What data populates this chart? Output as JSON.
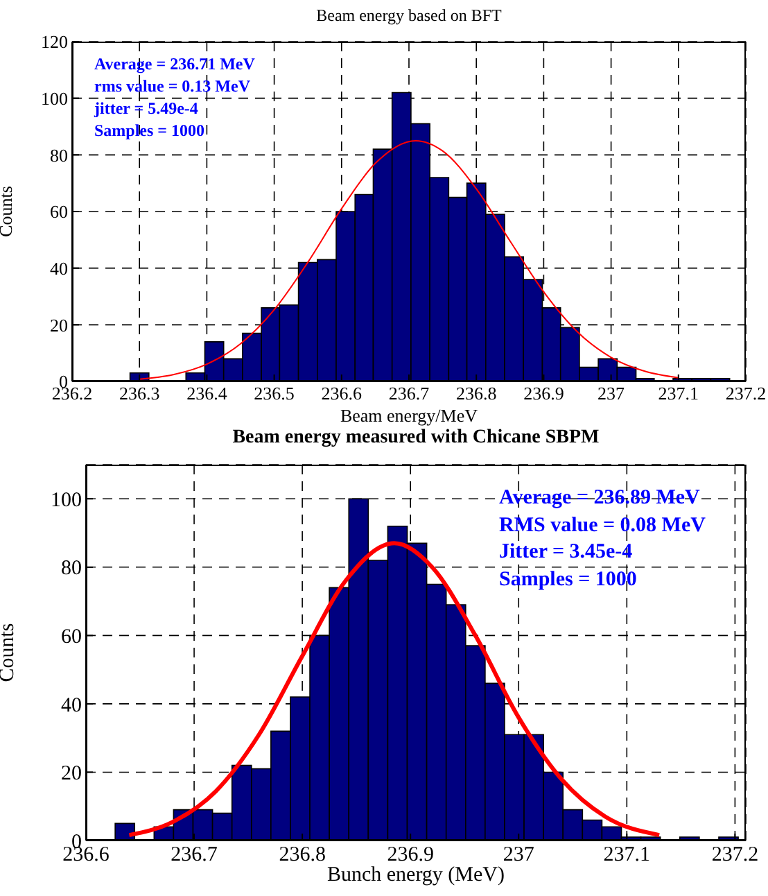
{
  "chart_data": [
    {
      "type": "histogram",
      "title": "Beam energy based on BFT",
      "xlabel": "Beam energy/MeV",
      "ylabel": "Counts",
      "bins": [
        236.286,
        236.314,
        236.369,
        236.397,
        236.425,
        236.453,
        236.481,
        236.508,
        236.536,
        236.564,
        236.592,
        236.62,
        236.647,
        236.675,
        236.703,
        236.731,
        236.759,
        236.786,
        236.814,
        236.842,
        236.87,
        236.898,
        236.925,
        236.953,
        236.981,
        237.009,
        237.037,
        237.064,
        237.092,
        237.12,
        237.148,
        237.176
      ],
      "values": [
        3,
        0,
        3,
        14,
        8,
        17,
        26,
        27,
        42,
        43,
        60,
        66,
        82,
        102,
        91,
        72,
        65,
        70,
        59,
        44,
        36,
        26,
        19,
        5,
        8,
        5,
        1,
        0,
        1,
        1,
        1
      ],
      "color": "#000080",
      "xlim": [
        236.2,
        237.2
      ],
      "xticks": [
        236.2,
        236.3,
        236.4,
        236.5,
        236.6,
        236.7,
        236.8,
        236.9,
        237,
        237.1,
        237.2
      ],
      "ylim": [
        0,
        120
      ],
      "yticks": [
        0,
        20,
        40,
        60,
        80,
        100,
        120
      ],
      "grid": true,
      "annotations": [
        "Average =  236.71 MeV",
        "rms value = 0.13 MeV",
        "jitter = 5.49e-4",
        "Samples = 1000"
      ],
      "series": [
        {
          "type": "line",
          "color": "#ff0000",
          "x": [
            236.3,
            236.35,
            236.4,
            236.45,
            236.5,
            236.55,
            236.6,
            236.65,
            236.71,
            236.75,
            236.8,
            236.85,
            236.9,
            236.95,
            237.0,
            237.05,
            237.1
          ],
          "values": [
            0.8,
            2.4,
            6.1,
            13.3,
            25.3,
            42.1,
            61,
            77,
            85,
            81.4,
            68,
            49.6,
            31.6,
            17.5,
            8.5,
            3.6,
            1.3
          ]
        }
      ]
    },
    {
      "type": "histogram",
      "title": "Beam energy measured with Chicane SBPM",
      "xlabel": "Bunch energy (MeV)",
      "ylabel": "Counts",
      "bins": [
        236.627,
        236.645,
        236.663,
        236.681,
        236.699,
        236.717,
        236.735,
        236.753,
        236.771,
        236.789,
        236.807,
        236.825,
        236.843,
        236.861,
        236.879,
        236.897,
        236.915,
        236.933,
        236.951,
        236.969,
        236.987,
        237.005,
        237.023,
        237.041,
        237.059,
        237.077,
        237.095,
        237.113,
        237.131,
        237.149,
        237.167,
        237.185,
        237.203
      ],
      "values": [
        5,
        0,
        4,
        9,
        9,
        8,
        22,
        21,
        32,
        42,
        60,
        74,
        100,
        82,
        92,
        87,
        75,
        69,
        57,
        46,
        31,
        31,
        20,
        9,
        6,
        4,
        1,
        1,
        0,
        1,
        0,
        1
      ],
      "color": "#000080",
      "xlim": [
        236.6,
        237.21
      ],
      "xticks": [
        236.6,
        236.7,
        236.8,
        236.9,
        237,
        237.1,
        237.2
      ],
      "ylim": [
        0,
        110
      ],
      "yticks": [
        0,
        20,
        40,
        60,
        80,
        100
      ],
      "grid": true,
      "annotations": [
        "Average = 236.89 MeV",
        "RMS value = 0.08 MeV",
        "Jitter = 3.45e-4",
        "Samples = 1000"
      ],
      "series": [
        {
          "type": "line",
          "color": "#ff0000",
          "x": [
            236.64,
            236.68,
            236.72,
            236.76,
            236.8,
            236.84,
            236.885,
            236.92,
            236.96,
            237.0,
            237.04,
            237.08,
            237.13
          ],
          "values": [
            1.6,
            5.4,
            14.4,
            31,
            54,
            76,
            87,
            80,
            60,
            36,
            17.8,
            7,
            1.6
          ]
        }
      ]
    }
  ]
}
